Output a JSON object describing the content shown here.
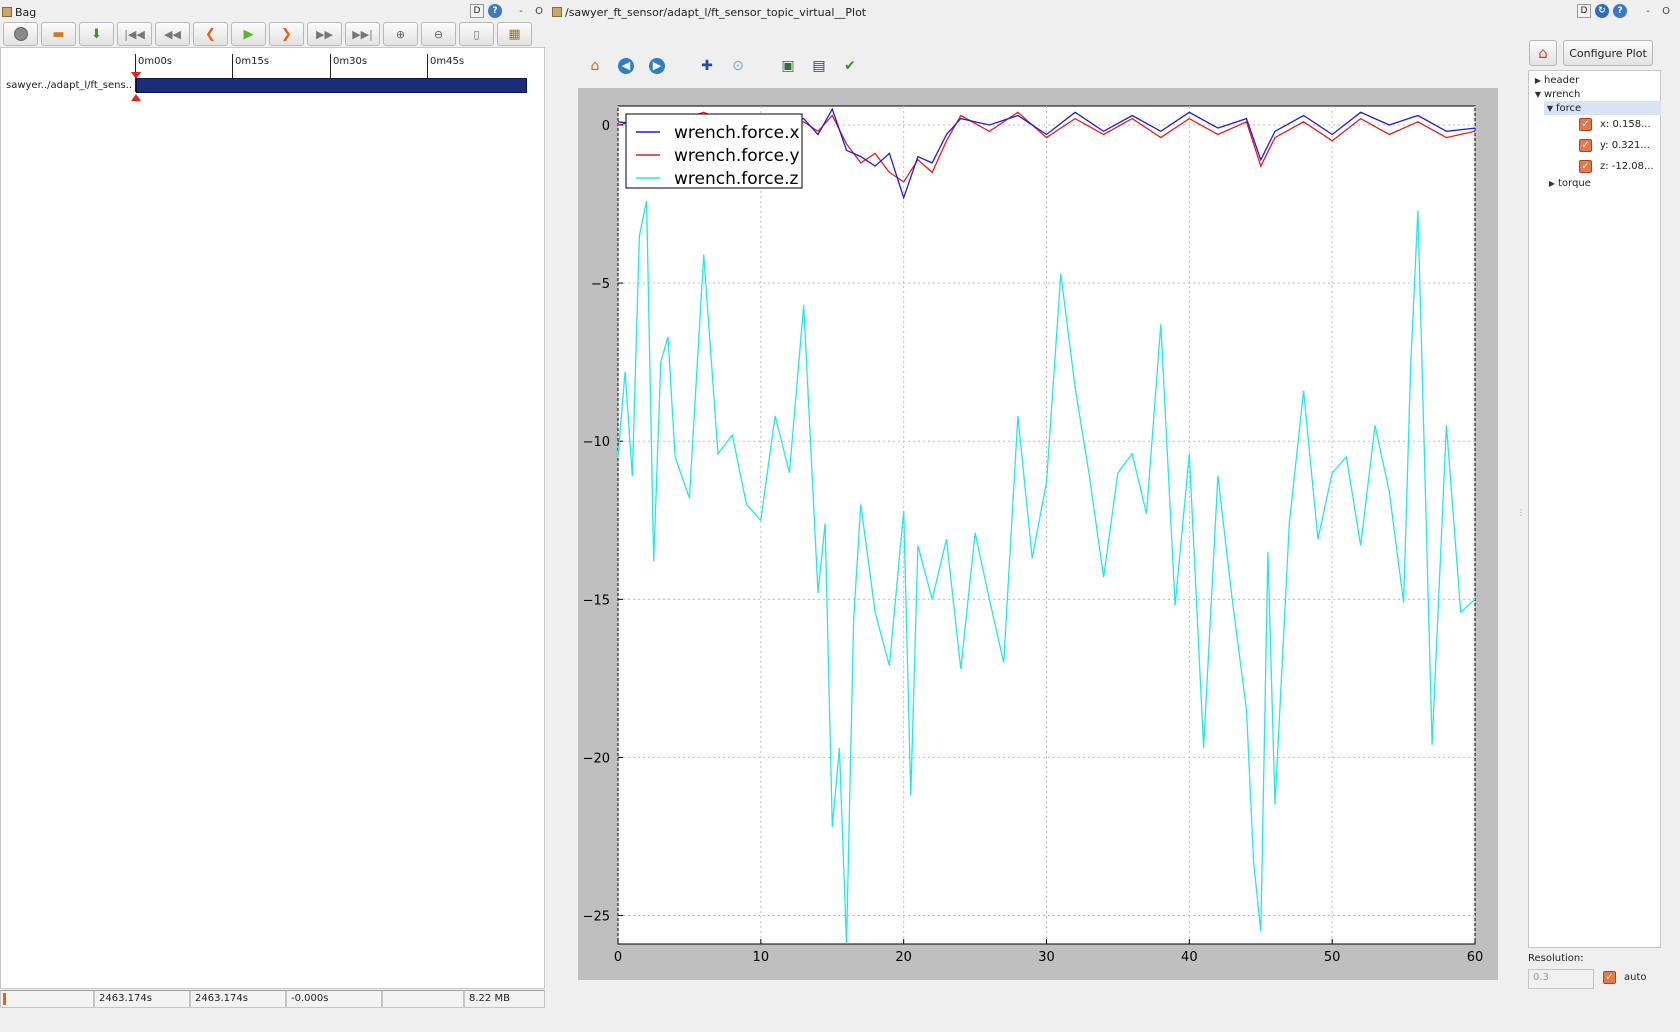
{
  "bag": {
    "window_title": "Bag",
    "toolbar_icons": [
      "record-icon",
      "open-icon",
      "save-icon",
      "skip-first-icon",
      "rewind-icon",
      "step-back-icon",
      "play-icon",
      "step-forward-icon",
      "fast-forward-icon",
      "skip-last-icon",
      "zoom-in-icon",
      "zoom-out-icon",
      "zoom-fit-icon",
      "thumbnails-icon"
    ],
    "timeline": {
      "ticks": [
        "0m00s",
        "0m15s",
        "0m30s",
        "0m45s"
      ],
      "topic": "sawyer../adapt_l/ft_sens.."
    },
    "status": {
      "start": "2463.174s",
      "current": "2463.174s",
      "offset": "-0.000s",
      "empty": "",
      "size": "8.22 MB"
    }
  },
  "plot": {
    "window_title": "/sawyer_ft_sensor/adapt_l/ft_sensor_topic_virtual__Plot",
    "toolbar_icons": [
      "home-icon",
      "back-icon",
      "forward-icon",
      "pan-icon",
      "zoom-icon",
      "subplots-icon",
      "save-figure-icon",
      "edit-axes-icon"
    ],
    "configure_label": "Configure Plot",
    "resolution_label": "Resolution:",
    "resolution_value": "0.3",
    "auto_label": "auto",
    "tree": {
      "header": "header",
      "wrench": "wrench",
      "force": "force",
      "x": "x: 0.158...",
      "y": "y: 0.321...",
      "z": "z: -12.08...",
      "torque": "torque"
    }
  },
  "colors": {
    "force_x": "#1f1fd6",
    "force_y": "#e02020",
    "force_z": "#22e8e8",
    "checkbox": "#e8784a",
    "bag_bar": "#1b2d7a"
  },
  "chart_data": {
    "type": "line",
    "title": "",
    "xlabel": "",
    "ylabel": "",
    "xlim": [
      0,
      60
    ],
    "ylim": [
      -25.9,
      0.6
    ],
    "xticks": [
      0,
      10,
      20,
      30,
      40,
      50,
      60
    ],
    "yticks": [
      0,
      -5,
      -10,
      -15,
      -20,
      -25
    ],
    "grid": true,
    "legend_position": "top-left",
    "series": [
      {
        "name": "wrench.force.x",
        "color": "#1f1fd6",
        "x": [
          0,
          2,
          4,
          6,
          8,
          10,
          12,
          13,
          14,
          15,
          16,
          17,
          18,
          19,
          20,
          21,
          22,
          23,
          24,
          26,
          28,
          30,
          32,
          34,
          36,
          38,
          40,
          42,
          44,
          45,
          46,
          48,
          50,
          52,
          54,
          56,
          58,
          60
        ],
        "y": [
          0.1,
          0.0,
          0.2,
          0.1,
          0.0,
          0.3,
          0.1,
          0.2,
          -0.3,
          0.5,
          -0.8,
          -1.0,
          -1.3,
          -0.9,
          -2.3,
          -1.0,
          -1.2,
          -0.3,
          0.2,
          0.0,
          0.3,
          -0.3,
          0.4,
          -0.2,
          0.3,
          -0.2,
          0.4,
          -0.1,
          0.2,
          -1.1,
          -0.2,
          0.3,
          -0.3,
          0.4,
          0.0,
          0.3,
          -0.2,
          -0.1
        ]
      },
      {
        "name": "wrench.force.y",
        "color": "#e02020",
        "x": [
          0,
          2,
          4,
          6,
          8,
          10,
          12,
          13,
          14,
          15,
          16,
          17,
          18,
          19,
          20,
          21,
          22,
          23,
          24,
          26,
          28,
          30,
          32,
          34,
          36,
          38,
          40,
          42,
          44,
          45,
          46,
          48,
          50,
          52,
          54,
          56,
          58,
          60
        ],
        "y": [
          0.0,
          0.2,
          0.1,
          0.4,
          0.0,
          0.2,
          0.0,
          0.1,
          -0.2,
          0.3,
          -0.6,
          -1.2,
          -0.9,
          -1.5,
          -1.8,
          -1.1,
          -1.5,
          -0.5,
          0.3,
          -0.2,
          0.4,
          -0.4,
          0.2,
          -0.3,
          0.2,
          -0.4,
          0.2,
          -0.3,
          0.1,
          -1.3,
          -0.4,
          0.1,
          -0.5,
          0.2,
          -0.3,
          0.1,
          -0.4,
          -0.2
        ]
      },
      {
        "name": "wrench.force.z",
        "color": "#22e8e8",
        "x": [
          0,
          0.5,
          1,
          1.5,
          2,
          2.5,
          3,
          3.5,
          4,
          5,
          6,
          7,
          8,
          9,
          10,
          11,
          12,
          13,
          14,
          14.5,
          15,
          15.5,
          16,
          16.5,
          17,
          18,
          19,
          20,
          20.5,
          21,
          22,
          23,
          24,
          25,
          26,
          27,
          28,
          29,
          30,
          31,
          32,
          33,
          34,
          35,
          36,
          37,
          38,
          39,
          40,
          41,
          42,
          43,
          44,
          44.5,
          45,
          45.5,
          46,
          47,
          48,
          49,
          50,
          51,
          52,
          53,
          54,
          55,
          55.5,
          56,
          57,
          58,
          59,
          60
        ],
        "y": [
          -10.5,
          -7.8,
          -11.1,
          -3.5,
          -2.4,
          -13.8,
          -7.5,
          -6.7,
          -10.5,
          -11.8,
          -4.1,
          -10.4,
          -9.8,
          -12.0,
          -12.5,
          -9.2,
          -11.0,
          -5.7,
          -14.8,
          -12.6,
          -22.2,
          -19.7,
          -25.9,
          -15.6,
          -12.0,
          -15.4,
          -17.1,
          -12.2,
          -21.2,
          -13.3,
          -15.0,
          -13.1,
          -17.2,
          -12.9,
          -15.0,
          -17.0,
          -9.2,
          -13.7,
          -11.3,
          -4.7,
          -8.3,
          -11.1,
          -14.3,
          -11.0,
          -10.4,
          -12.3,
          -6.3,
          -15.2,
          -10.4,
          -19.7,
          -11.1,
          -15.0,
          -18.5,
          -23.3,
          -25.5,
          -13.5,
          -21.5,
          -12.6,
          -8.4,
          -13.1,
          -11.0,
          -10.5,
          -13.3,
          -9.5,
          -11.6,
          -15.1,
          -7.6,
          -2.7,
          -19.6,
          -9.5,
          -15.4,
          -15.0
        ]
      }
    ]
  }
}
